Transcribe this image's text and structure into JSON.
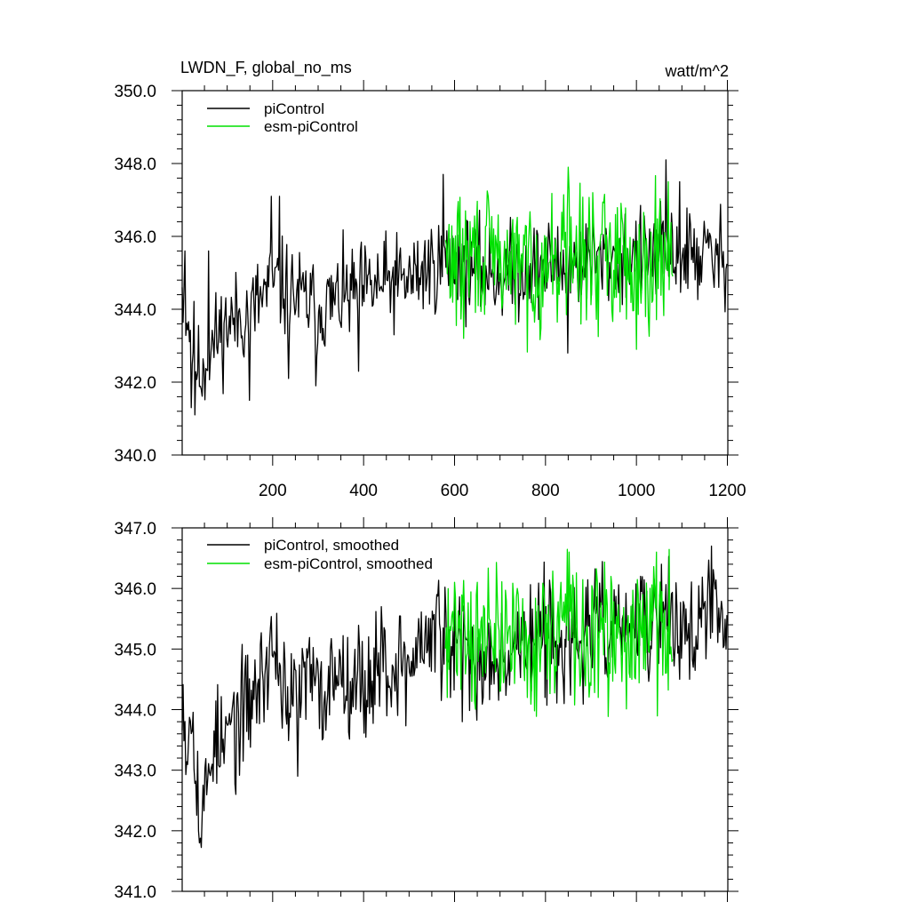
{
  "units": "watt/m^2",
  "chart_data": [
    {
      "type": "line",
      "title": "LWDN_F, global_no_ms",
      "units": "watt/m^2",
      "xlabel": "",
      "ylabel": "",
      "xlim": [
        1,
        1201
      ],
      "ylim": [
        340.0,
        350.0
      ],
      "x_ticks": [
        200,
        400,
        600,
        800,
        1000,
        1200
      ],
      "x_tick_labels": [
        "200",
        "400",
        "600",
        "800",
        "1000",
        "1200"
      ],
      "y_ticks": [
        340.0,
        342.0,
        344.0,
        346.0,
        348.0,
        350.0
      ],
      "y_tick_labels": [
        "340.0",
        "342.0",
        "344.0",
        "346.0",
        "348.0",
        "350.0"
      ],
      "legend": "top-left",
      "series": [
        {
          "name": "piControl",
          "color": "#000000",
          "x_start": 1,
          "x_end": 1200,
          "anchors": [
            [
              1,
              344.6
            ],
            [
              20,
              343.3
            ],
            [
              40,
              342.2
            ],
            [
              60,
              342.8
            ],
            [
              80,
              343.3
            ],
            [
              100,
              343.6
            ],
            [
              150,
              343.9
            ],
            [
              200,
              344.7
            ],
            [
              250,
              344.4
            ],
            [
              300,
              344.0
            ],
            [
              350,
              344.3
            ],
            [
              400,
              344.5
            ],
            [
              450,
              344.7
            ],
            [
              500,
              344.8
            ],
            [
              550,
              345.2
            ],
            [
              600,
              345.3
            ],
            [
              650,
              345.1
            ],
            [
              700,
              344.9
            ],
            [
              750,
              345.1
            ],
            [
              800,
              345.2
            ],
            [
              850,
              345.2
            ],
            [
              900,
              345.3
            ],
            [
              950,
              345.4
            ],
            [
              1000,
              345.4
            ],
            [
              1050,
              345.5
            ],
            [
              1100,
              345.5
            ],
            [
              1150,
              345.5
            ],
            [
              1200,
              345.3
            ]
          ],
          "noise_amplitude": 0.65,
          "seed": 11,
          "spikes": [
            [
              1,
              344.6
            ],
            [
              8,
              345.6
            ],
            [
              22,
              341.3
            ],
            [
              30,
              341.1
            ],
            [
              60,
              345.6
            ],
            [
              150,
              341.5
            ],
            [
              198,
              347.1
            ],
            [
              215,
              347.1
            ],
            [
              235,
              342.1
            ],
            [
              295,
              341.9
            ],
            [
              390,
              342.3
            ],
            [
              575,
              347.7
            ],
            [
              849,
              342.8
            ],
            [
              1065,
              348.1
            ],
            [
              1095,
              347.5
            ]
          ]
        },
        {
          "name": "esm-piControl",
          "color": "#00e000",
          "x_start": 580,
          "x_end": 1080,
          "anchors": [
            [
              580,
              345.3
            ],
            [
              650,
              345.5
            ],
            [
              700,
              345.3
            ],
            [
              750,
              345.2
            ],
            [
              800,
              345.2
            ],
            [
              850,
              345.6
            ],
            [
              900,
              345.3
            ],
            [
              950,
              345.5
            ],
            [
              1000,
              345.4
            ],
            [
              1050,
              345.5
            ],
            [
              1080,
              345.3
            ]
          ],
          "noise_amplitude": 0.9,
          "seed": 29,
          "spikes": [
            [
              850,
              347.9
            ],
            [
              905,
              347.2
            ],
            [
              1000,
              342.9
            ],
            [
              1020,
              343.8
            ],
            [
              1070,
              347.5
            ],
            [
              620,
              343.2
            ]
          ]
        }
      ]
    },
    {
      "type": "line",
      "title": "",
      "xlabel": "",
      "ylabel": "",
      "xlim": [
        1,
        1201
      ],
      "ylim": [
        341.0,
        347.0
      ],
      "x_ticks": [
        200,
        400,
        600,
        800,
        1000,
        1200
      ],
      "x_tick_labels": [],
      "y_ticks": [
        341.0,
        342.0,
        343.0,
        344.0,
        345.0,
        346.0,
        347.0
      ],
      "y_tick_labels": [
        "341.0",
        "342.0",
        "343.0",
        "344.0",
        "345.0",
        "346.0",
        "347.0"
      ],
      "legend": "top-left",
      "series": [
        {
          "name": "piControl, smoothed",
          "color": "#000000",
          "x_start": 1,
          "x_end": 1200,
          "anchors": [
            [
              1,
              344.6
            ],
            [
              10,
              343.4
            ],
            [
              25,
              344.1
            ],
            [
              40,
              342.0
            ],
            [
              55,
              342.7
            ],
            [
              70,
              343.6
            ],
            [
              90,
              343.3
            ],
            [
              110,
              343.8
            ],
            [
              140,
              344.0
            ],
            [
              170,
              344.4
            ],
            [
              200,
              345.1
            ],
            [
              220,
              344.6
            ],
            [
              240,
              344.0
            ],
            [
              260,
              344.4
            ],
            [
              280,
              344.6
            ],
            [
              300,
              344.2
            ],
            [
              320,
              344.3
            ],
            [
              340,
              344.8
            ],
            [
              360,
              344.5
            ],
            [
              380,
              344.7
            ],
            [
              400,
              344.3
            ],
            [
              420,
              344.6
            ],
            [
              440,
              344.9
            ],
            [
              460,
              344.5
            ],
            [
              480,
              344.9
            ],
            [
              500,
              344.6
            ],
            [
              520,
              345.1
            ],
            [
              540,
              345.0
            ],
            [
              560,
              345.4
            ],
            [
              580,
              345.0
            ],
            [
              600,
              344.9
            ],
            [
              620,
              345.2
            ],
            [
              640,
              344.8
            ],
            [
              660,
              344.6
            ],
            [
              680,
              345.0
            ],
            [
              700,
              345.1
            ],
            [
              720,
              344.9
            ],
            [
              750,
              345.2
            ],
            [
              780,
              345.2
            ],
            [
              800,
              345.3
            ],
            [
              840,
              345.2
            ],
            [
              870,
              345.0
            ],
            [
              900,
              345.4
            ],
            [
              940,
              345.3
            ],
            [
              980,
              345.4
            ],
            [
              1020,
              345.3
            ],
            [
              1050,
              345.4
            ],
            [
              1080,
              345.6
            ],
            [
              1110,
              345.2
            ],
            [
              1140,
              345.5
            ],
            [
              1170,
              345.6
            ],
            [
              1200,
              345.3
            ]
          ],
          "noise_amplitude": 0.45,
          "seed": 53,
          "spikes": [
            [
              40,
              341.8
            ],
            [
              120,
              342.6
            ],
            [
              190,
              344.0
            ],
            [
              255,
              342.9
            ],
            [
              310,
              343.5
            ],
            [
              440,
              345.7
            ],
            [
              465,
              344.7
            ],
            [
              562,
              345.9
            ],
            [
              617,
              343.8
            ],
            [
              663,
              344.2
            ],
            [
              799,
              344.2
            ],
            [
              842,
              344.1
            ],
            [
              935,
              344.6
            ],
            [
              1010,
              346.2
            ],
            [
              1055,
              346.4
            ],
            [
              1095,
              344.5
            ],
            [
              1125,
              344.7
            ],
            [
              1165,
              346.7
            ],
            [
              1198,
              345.0
            ]
          ]
        },
        {
          "name": "esm-piControl, smoothed",
          "color": "#00e000",
          "x_start": 580,
          "x_end": 1080,
          "anchors": [
            [
              580,
              345.1
            ],
            [
              620,
              345.5
            ],
            [
              650,
              345.0
            ],
            [
              680,
              345.3
            ],
            [
              710,
              345.1
            ],
            [
              740,
              345.4
            ],
            [
              760,
              345.0
            ],
            [
              790,
              345.2
            ],
            [
              820,
              345.3
            ],
            [
              850,
              345.5
            ],
            [
              880,
              345.0
            ],
            [
              910,
              345.3
            ],
            [
              940,
              345.2
            ],
            [
              970,
              345.1
            ],
            [
              1000,
              345.3
            ],
            [
              1030,
              345.4
            ],
            [
              1060,
              345.2
            ],
            [
              1080,
              345.0
            ]
          ],
          "noise_amplitude": 0.55,
          "seed": 71,
          "spikes": [
            [
              585,
              344.2
            ],
            [
              600,
              346.1
            ],
            [
              650,
              346.1
            ],
            [
              700,
              344.3
            ],
            [
              738,
              346.0
            ],
            [
              760,
              344.2
            ],
            [
              782,
              344.9
            ],
            [
              835,
              346.1
            ],
            [
              852,
              346.6
            ],
            [
              900,
              344.4
            ],
            [
              917,
              344.2
            ],
            [
              955,
              344.6
            ],
            [
              990,
              344.5
            ],
            [
              1015,
              345.9
            ],
            [
              1045,
              346.6
            ],
            [
              1065,
              344.6
            ]
          ]
        }
      ]
    }
  ]
}
